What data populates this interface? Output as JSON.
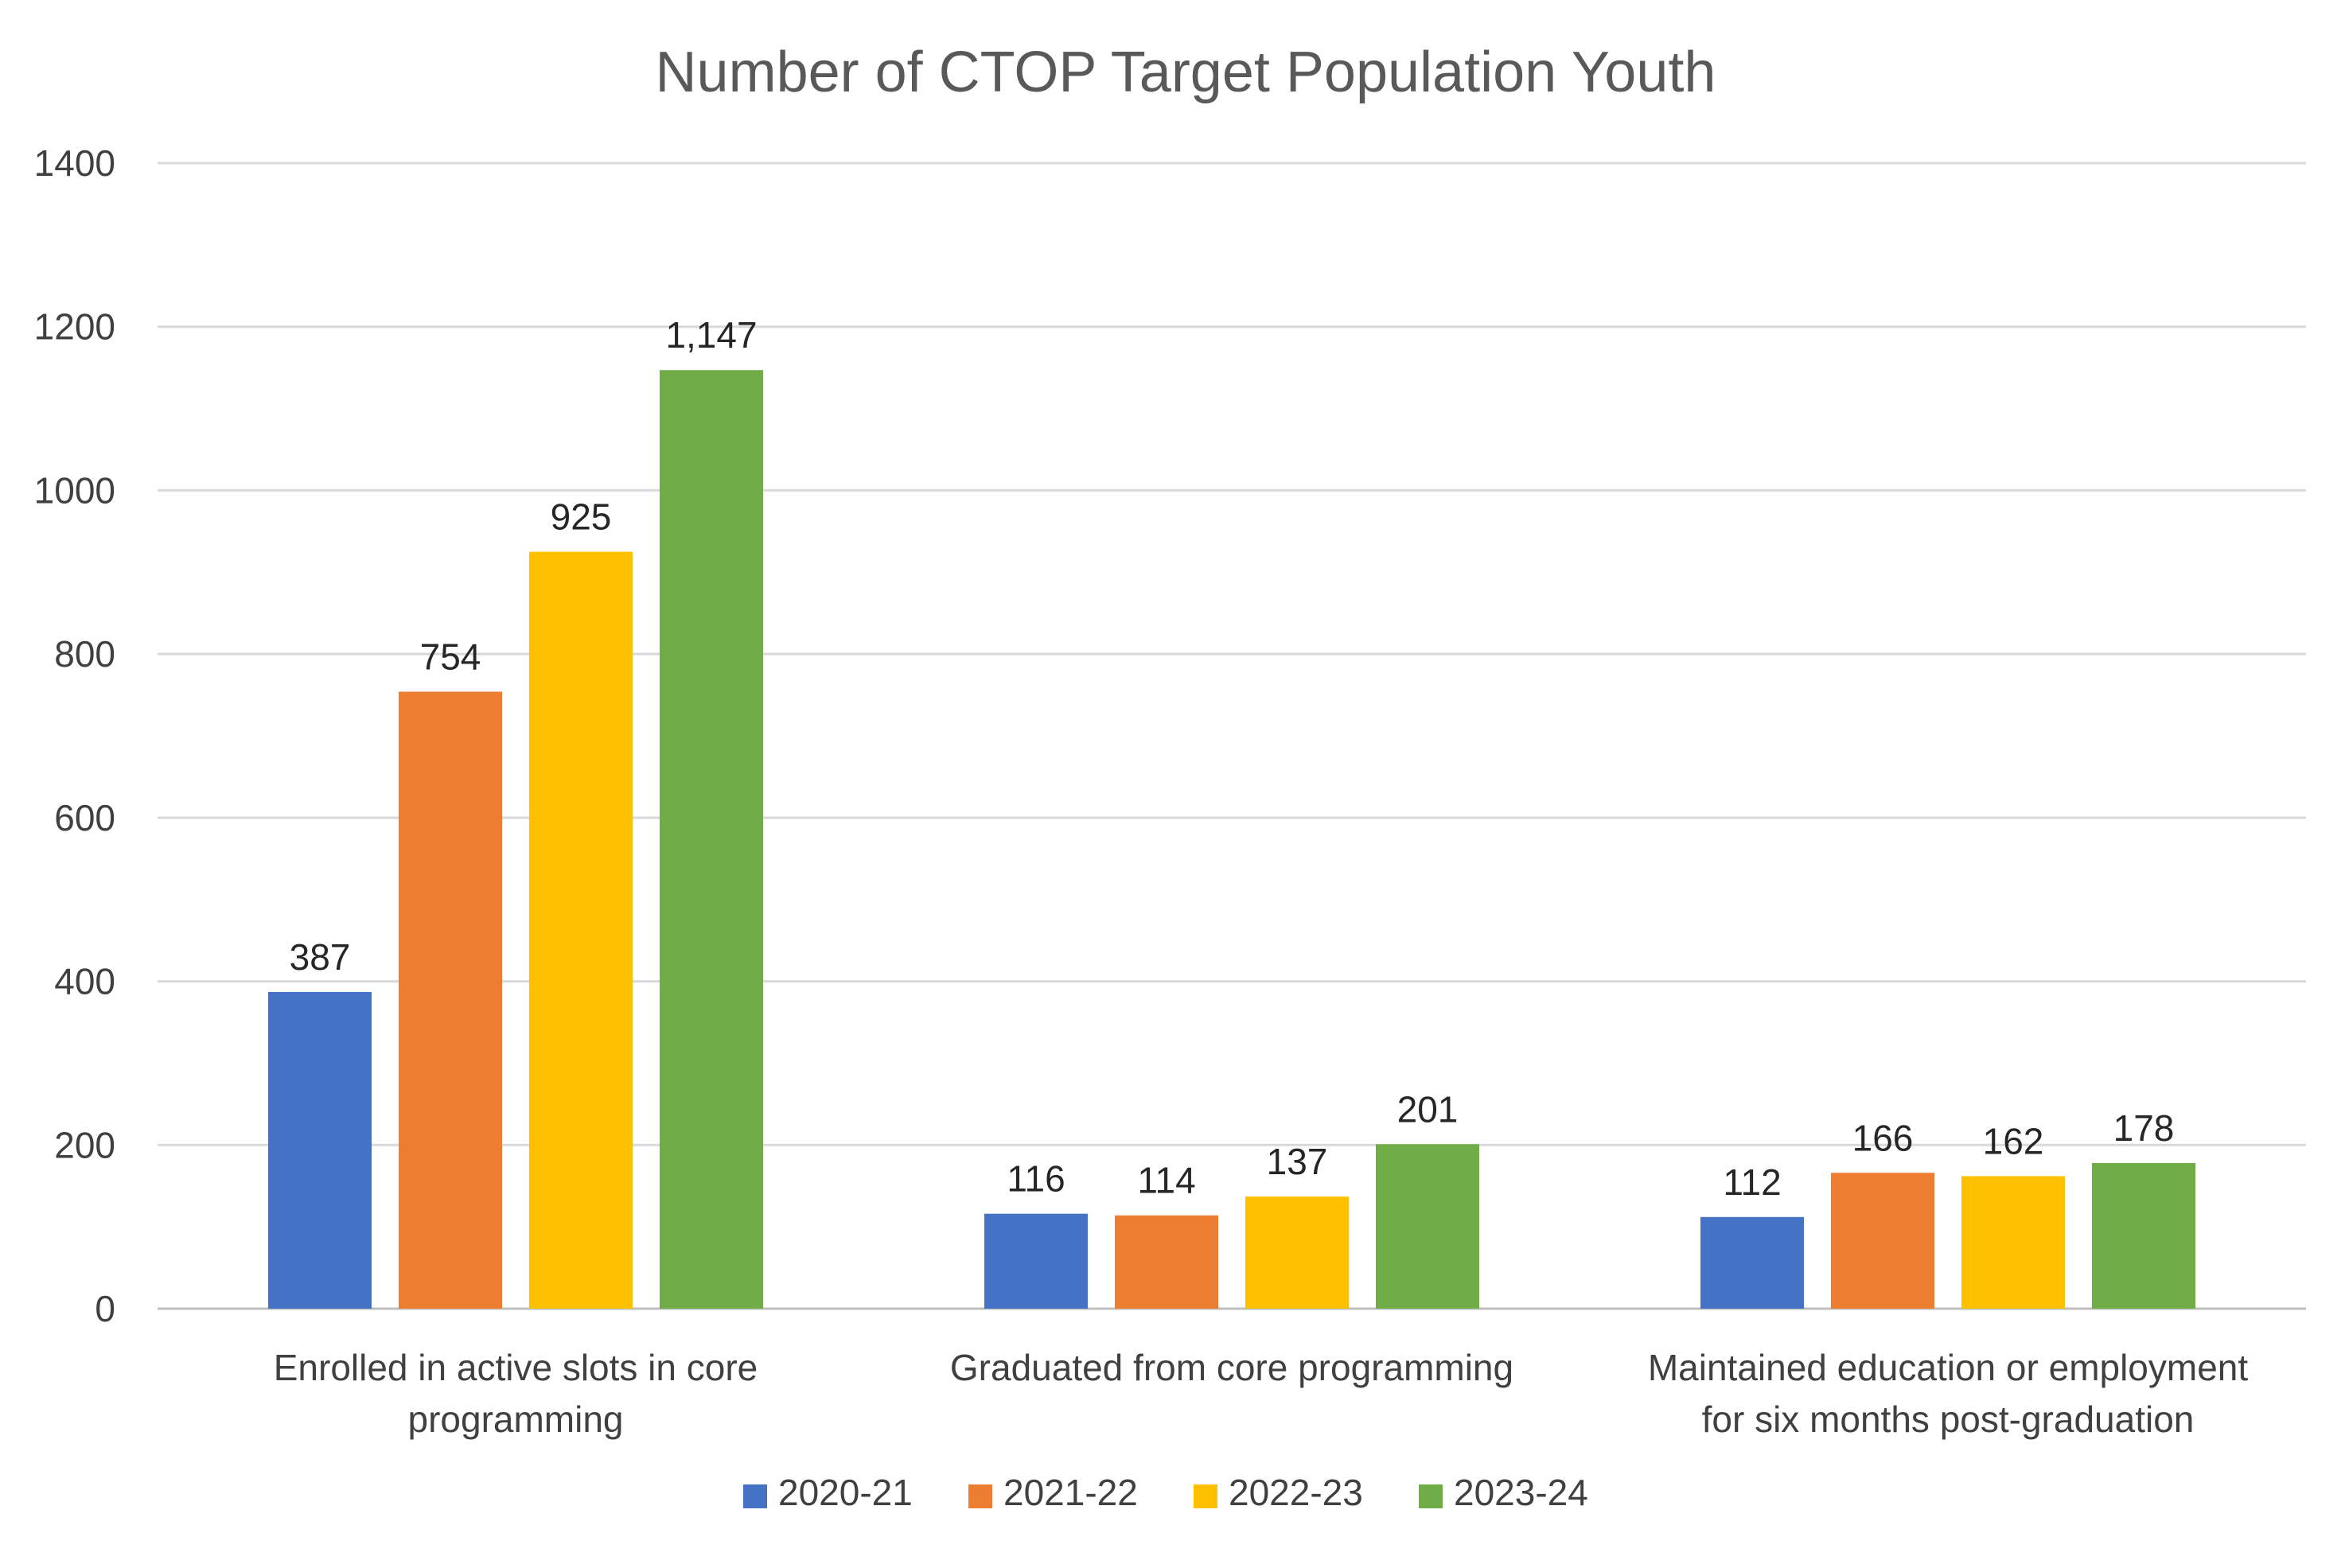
{
  "chart_data": {
    "type": "bar",
    "title": "Number of CTOP Target Population Youth",
    "xlabel": "",
    "ylabel": "",
    "ylim": [
      0,
      1400
    ],
    "yticks": [
      0,
      200,
      400,
      600,
      800,
      1000,
      1200,
      1400
    ],
    "grid": true,
    "legend_position": "bottom",
    "categories": [
      "Enrolled in active slots in core programming",
      "Graduated from core programming",
      "Maintained education or employment for six months post-graduation"
    ],
    "category_lines": [
      [
        "Enrolled in active slots in core",
        "programming"
      ],
      [
        "Graduated from core programming"
      ],
      [
        "Maintained education or employment",
        "for six months post-graduation"
      ]
    ],
    "series": [
      {
        "name": "2020-21",
        "color": "#4472C4",
        "values": [
          387,
          116,
          112
        ],
        "labels": [
          "387",
          "116",
          "112"
        ]
      },
      {
        "name": "2021-22",
        "color": "#ED7D31",
        "values": [
          754,
          114,
          166
        ],
        "labels": [
          "754",
          "114",
          "166"
        ]
      },
      {
        "name": "2022-23",
        "color": "#FFC000",
        "values": [
          925,
          137,
          162
        ],
        "labels": [
          "925",
          "137",
          "162"
        ]
      },
      {
        "name": "2023-24",
        "color": "#70AD47",
        "values": [
          1147,
          201,
          178
        ],
        "labels": [
          "1,147",
          "201",
          "178"
        ]
      }
    ]
  }
}
